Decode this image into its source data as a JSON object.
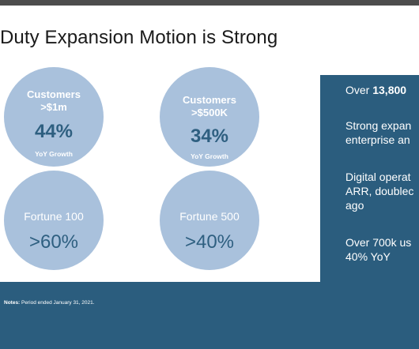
{
  "slide": {
    "title": "Duty Expansion Motion is Strong"
  },
  "circles": {
    "c1": {
      "label_line1": "Customers",
      "label_line2": ">$1m",
      "value": "44%",
      "sub": "YoY Growth"
    },
    "c2": {
      "label_line1": "Customers",
      "label_line2": ">$500K",
      "value": "34%",
      "sub": "YoY Growth"
    },
    "c3": {
      "label": "Fortune 100",
      "value": ">60%"
    },
    "c4": {
      "label": "Fortune 500",
      "value": ">40%"
    }
  },
  "panel": {
    "line1_prefix": "Over ",
    "line1_bold": "13,800",
    "line2a": "Strong expan",
    "line2b": "enterprise an",
    "line3a": "Digital operat",
    "line3b": "ARR, doublec",
    "line3c": "ago",
    "line4a": "Over 700k us",
    "line4b": "40% YoY"
  },
  "footer": {
    "notes_label": "Notes:",
    "notes_text": " Period ended January 31, 2021."
  },
  "colors": {
    "circle": "#a9c1dc",
    "panel": "#2b5d7e",
    "accent_text": "#2e5f80"
  }
}
